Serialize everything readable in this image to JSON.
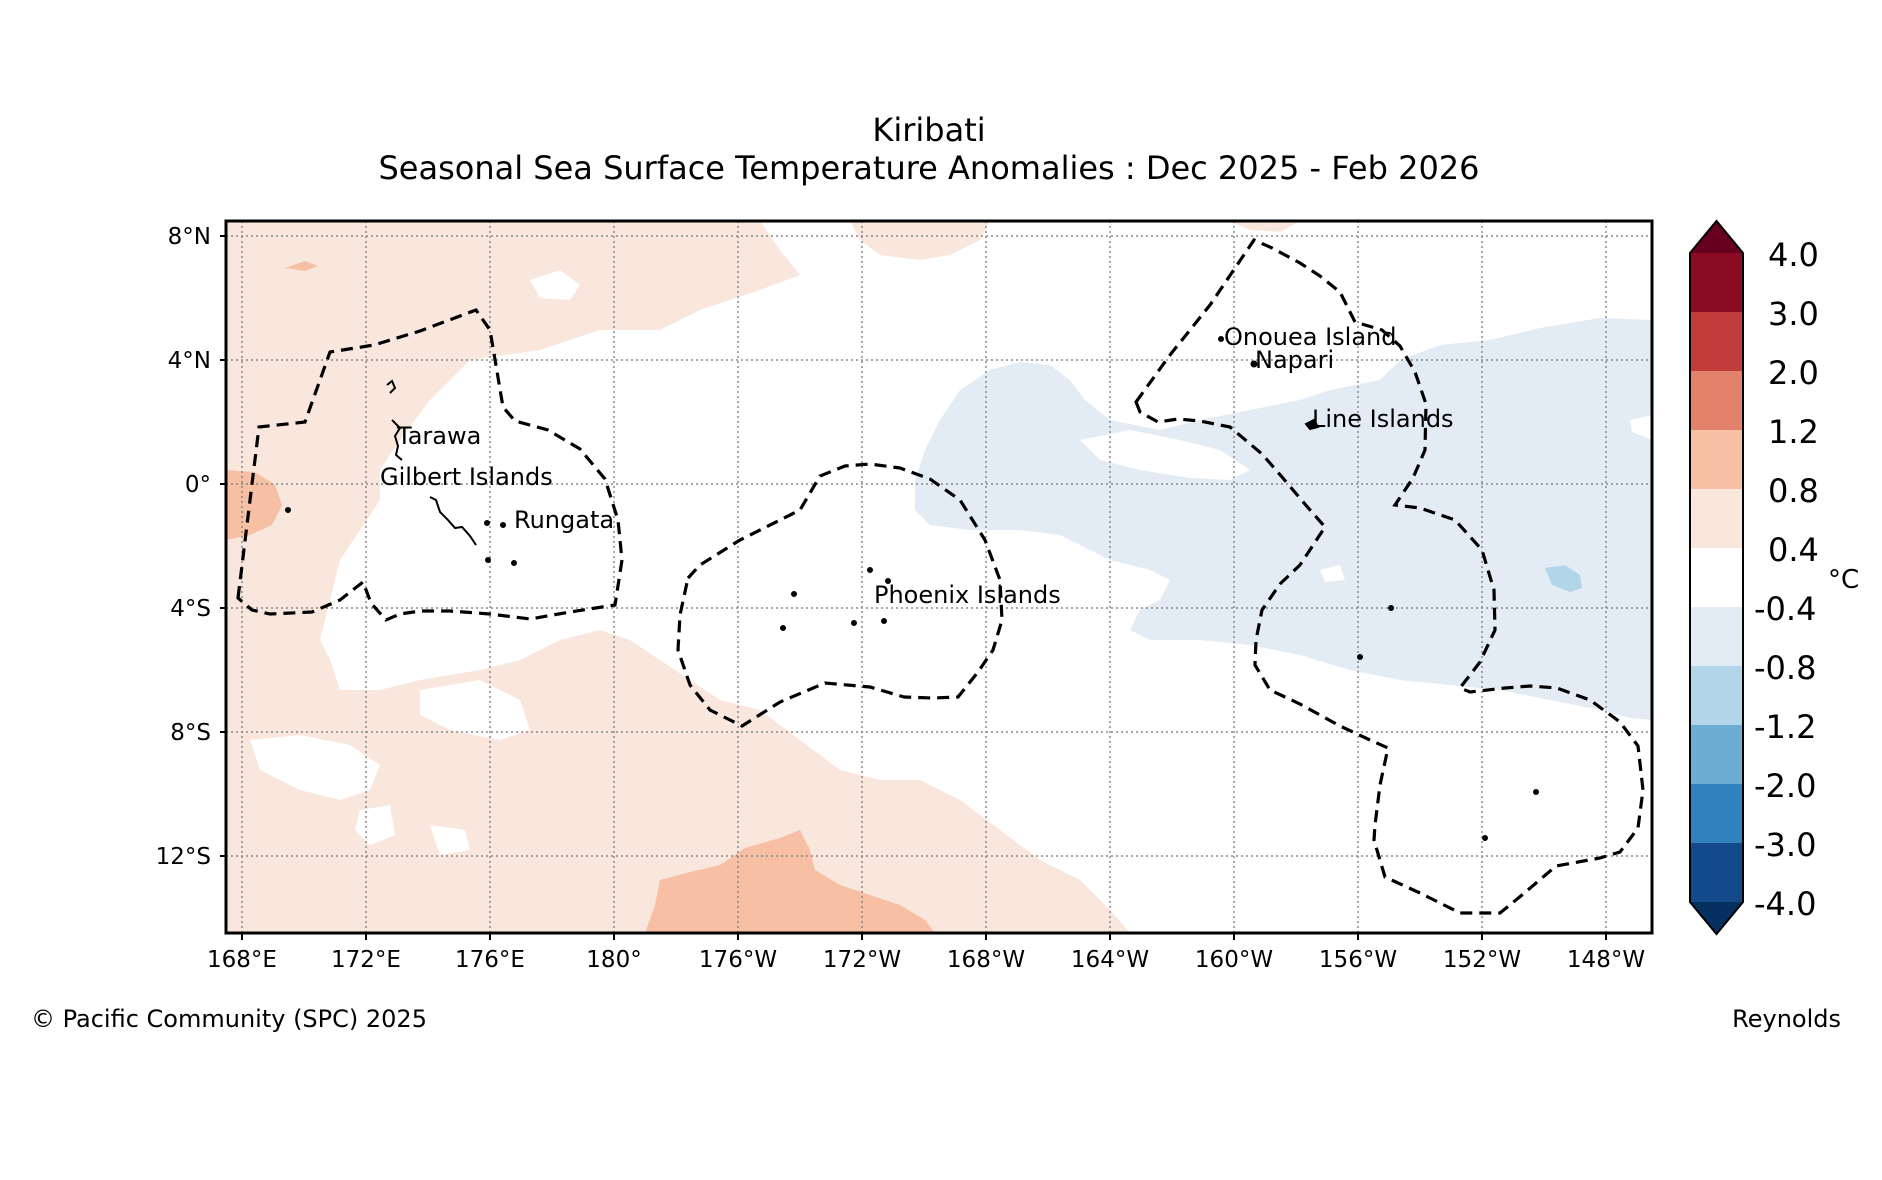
{
  "title": "Kiribati",
  "subtitle": "Seasonal Sea Surface Temperature Anomalies : Dec 2025 - Feb 2026",
  "map": {
    "lat_ticks": [
      "8°N",
      "4°N",
      "0°",
      "4°S",
      "8°S",
      "12°S"
    ],
    "lon_ticks": [
      "168°E",
      "172°E",
      "176°E",
      "180°",
      "176°W",
      "172°W",
      "168°W",
      "164°W",
      "160°W",
      "156°W",
      "152°W",
      "148°W"
    ],
    "places": [
      {
        "name": "Onouea Island",
        "lon": -160.1,
        "lat": 4.7
      },
      {
        "name": "Napari",
        "lon": -159.4,
        "lat": 3.9
      },
      {
        "name": "Line Islands",
        "lon": -157.4,
        "lat": 2.0
      },
      {
        "name": "Tarawa",
        "lon": 173.0,
        "lat": 1.4
      },
      {
        "name": "Gilbert Islands",
        "lon": 172.5,
        "lat": 0.2
      },
      {
        "name": "Rungata",
        "lon": 176.6,
        "lat": -1.3
      },
      {
        "name": "Phoenix Islands",
        "lon": -171.6,
        "lat": -3.7
      }
    ],
    "colors": {
      "land_outline": "#000000",
      "grid": "#888888",
      "warm_0_4_0_8": "#f9e7de",
      "warm_0_8_1_2": "#f7bfa3",
      "cool_-0_4_-0_8": "#e3ecf4",
      "cool_-0_8_-1_2": "#b3d5ea"
    }
  },
  "colorbar": {
    "unit": "°C",
    "labels": [
      "4.0",
      "3.0",
      "2.0",
      "1.2",
      "0.8",
      "0.4",
      "-0.4",
      "-0.8",
      "-1.2",
      "-2.0",
      "-3.0",
      "-4.0"
    ],
    "colors": [
      "#67001f",
      "#8b0a24",
      "#c13c3d",
      "#e2826a",
      "#f7bfa3",
      "#f9e7de",
      "#ffffff",
      "#e3ecf4",
      "#b3d5ea",
      "#6dadd4",
      "#3181be",
      "#134a8c",
      "#06305f"
    ]
  },
  "footer": {
    "copyright": "© Pacific Community (SPC) 2025",
    "source": "Reynolds"
  }
}
